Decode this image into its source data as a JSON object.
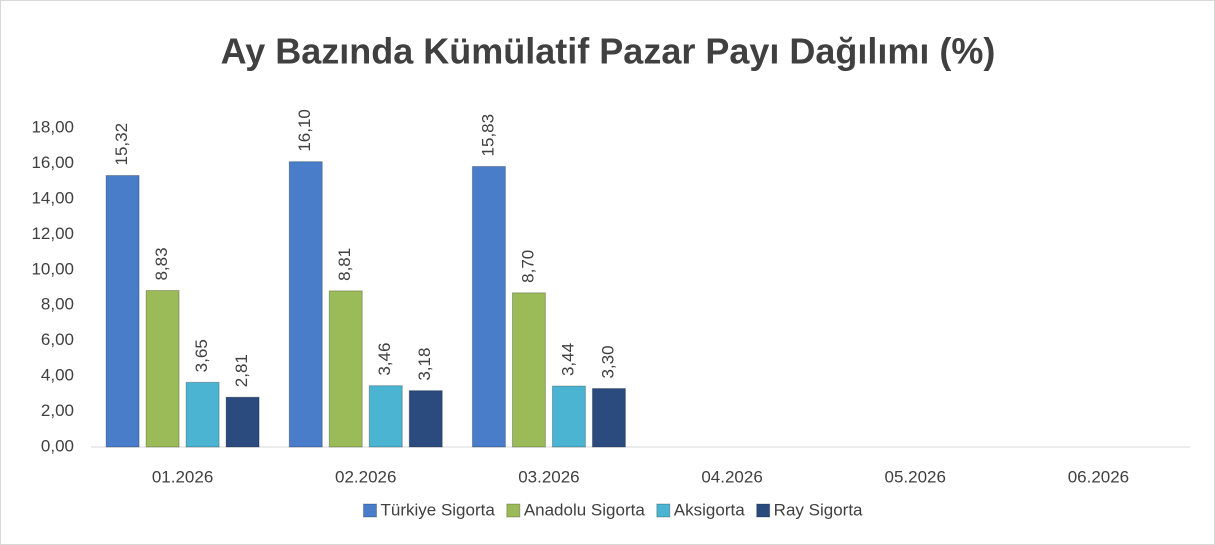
{
  "chart_data": {
    "type": "bar",
    "title": "Ay Bazında Kümülatif Pazar Payı Dağılımı (%)",
    "categories": [
      "01.2026",
      "02.2026",
      "03.2026",
      "04.2026",
      "05.2026",
      "06.2026"
    ],
    "series": [
      {
        "name": "Türkiye Sigorta",
        "color": "#4a7dc9",
        "values": [
          15.32,
          16.1,
          15.83,
          null,
          null,
          null
        ],
        "value_labels": [
          "15,32",
          "16,10",
          "15,83",
          null,
          null,
          null
        ]
      },
      {
        "name": "Anadolu Sigorta",
        "color": "#9bbb59",
        "values": [
          8.83,
          8.81,
          8.7,
          null,
          null,
          null
        ],
        "value_labels": [
          "8,83",
          "8,81",
          "8,70",
          null,
          null,
          null
        ]
      },
      {
        "name": "Aksigorta",
        "color": "#4bb4d2",
        "values": [
          3.65,
          3.46,
          3.44,
          null,
          null,
          null
        ],
        "value_labels": [
          "3,65",
          "3,46",
          "3,44",
          null,
          null,
          null
        ]
      },
      {
        "name": "Ray Sigorta",
        "color": "#2b4b7e",
        "values": [
          2.81,
          3.18,
          3.3,
          null,
          null,
          null
        ],
        "value_labels": [
          "2,81",
          "3,18",
          "3,30",
          null,
          null,
          null
        ]
      }
    ],
    "ylim": [
      0,
      18
    ],
    "yticks": [
      {
        "value": 0,
        "label": "0,00"
      },
      {
        "value": 2,
        "label": "2,00"
      },
      {
        "value": 4,
        "label": "4,00"
      },
      {
        "value": 6,
        "label": "6,00"
      },
      {
        "value": 8,
        "label": "8,00"
      },
      {
        "value": 10,
        "label": "10,00"
      },
      {
        "value": 12,
        "label": "12,00"
      },
      {
        "value": 14,
        "label": "14,00"
      },
      {
        "value": 16,
        "label": "16,00"
      },
      {
        "value": 18,
        "label": "18,00"
      }
    ],
    "grid": false,
    "legend": "bottom"
  }
}
